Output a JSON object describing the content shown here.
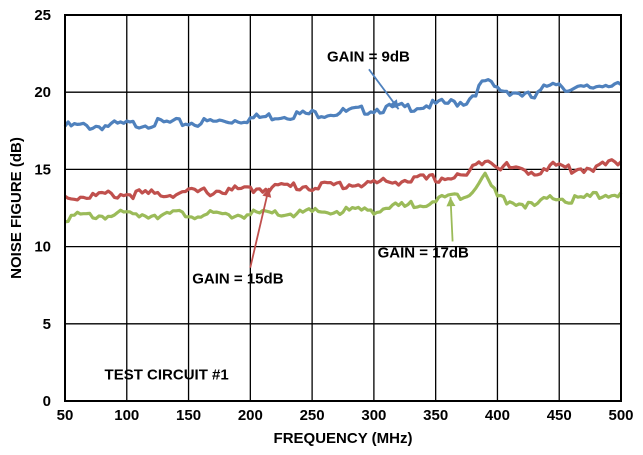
{
  "chart_data": {
    "type": "line",
    "xlabel": "FREQUENCY (MHz)",
    "ylabel": "NOISE FIGURE (dB)",
    "xlim": [
      50,
      500
    ],
    "ylim": [
      0,
      25
    ],
    "xticks": [
      50,
      100,
      150,
      200,
      250,
      300,
      350,
      400,
      450,
      500
    ],
    "yticks": [
      0,
      5,
      10,
      15,
      20,
      25
    ],
    "grid": true,
    "legend": "none",
    "series": [
      {
        "name": "GAIN = 9dB",
        "color": "#4f81bd",
        "x": [
          50,
          75,
          100,
          125,
          150,
          175,
          200,
          225,
          250,
          275,
          300,
          325,
          350,
          375,
          390,
          400,
          415,
          430,
          445,
          460,
          475,
          490,
          500
        ],
        "y": [
          17.8,
          17.8,
          17.9,
          18.0,
          18.0,
          18.1,
          18.3,
          18.5,
          18.6,
          18.7,
          18.9,
          19.0,
          19.2,
          19.4,
          20.7,
          20.2,
          20.0,
          19.6,
          20.8,
          20.1,
          20.3,
          20.6,
          20.5
        ]
      },
      {
        "name": "GAIN = 15dB",
        "color": "#c0504d",
        "x": [
          50,
          75,
          100,
          125,
          150,
          175,
          200,
          225,
          250,
          275,
          300,
          325,
          350,
          375,
          390,
          400,
          415,
          430,
          445,
          460,
          475,
          490,
          500
        ],
        "y": [
          13.2,
          13.3,
          13.4,
          13.4,
          13.5,
          13.6,
          13.7,
          13.9,
          13.9,
          14.0,
          14.1,
          14.3,
          14.4,
          14.6,
          15.8,
          15.3,
          15.0,
          14.8,
          15.3,
          15.0,
          15.1,
          15.3,
          15.5
        ]
      },
      {
        "name": "GAIN = 17dB",
        "color": "#9bbb59",
        "x": [
          50,
          75,
          100,
          125,
          150,
          175,
          200,
          225,
          250,
          275,
          300,
          325,
          350,
          375,
          390,
          400,
          415,
          430,
          445,
          460,
          475,
          490,
          500
        ],
        "y": [
          11.9,
          12.0,
          12.1,
          12.1,
          12.1,
          12.0,
          12.1,
          12.1,
          12.2,
          12.3,
          12.4,
          12.6,
          13.0,
          13.4,
          14.6,
          13.2,
          12.9,
          12.6,
          13.2,
          13.0,
          13.2,
          13.4,
          13.5
        ]
      }
    ],
    "annotations": [
      {
        "text": "GAIN = 9dB",
        "series": 0,
        "x": 320,
        "y": 18.9,
        "label_x": 262,
        "label_y": 22.0
      },
      {
        "text": "GAIN = 15dB",
        "series": 1,
        "x": 215,
        "y": 13.8,
        "label_x": 153,
        "label_y": 7.6
      },
      {
        "text": "GAIN = 17dB",
        "series": 2,
        "x": 362,
        "y": 13.2,
        "label_x": 303,
        "label_y": 9.3
      }
    ],
    "plot_text": "TEST CIRCUIT #1"
  }
}
